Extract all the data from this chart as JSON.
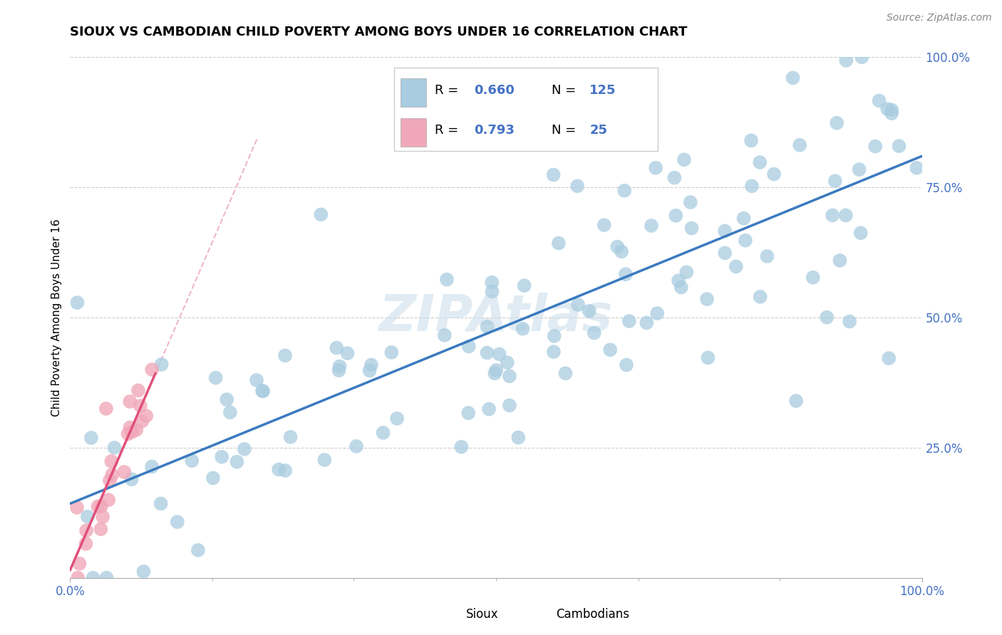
{
  "title": "SIOUX VS CAMBODIAN CHILD POVERTY AMONG BOYS UNDER 16 CORRELATION CHART",
  "source": "Source: ZipAtlas.com",
  "ylabel": "Child Poverty Among Boys Under 16",
  "blue_color": "#a8cce0",
  "pink_color": "#f0a8b8",
  "line_blue": "#3a7abf",
  "line_pink": "#e0507a",
  "line_pink_dash": "#e898b0",
  "watermark_color": "#c8dcea",
  "legend_r1": "0.660",
  "legend_n1": "125",
  "legend_r2": "0.793",
  "legend_n2": "25",
  "legend_label1": "Sioux",
  "legend_label2": "Cambodians",
  "tick_color": "#4472c4",
  "grid_color": "#cccccc",
  "title_fontsize": 13,
  "tick_fontsize": 12,
  "source_fontsize": 10
}
